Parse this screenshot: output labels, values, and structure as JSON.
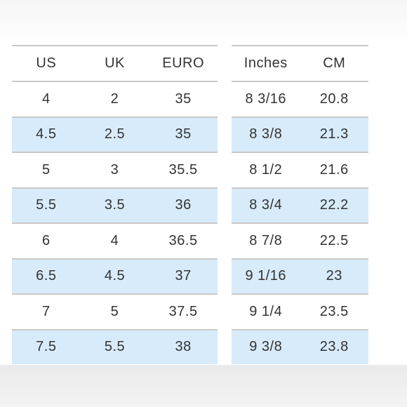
{
  "left_table": {
    "headers": [
      "US",
      "UK",
      "EURO"
    ],
    "rows": [
      [
        "4",
        "2",
        "35"
      ],
      [
        "4.5",
        "2.5",
        "35"
      ],
      [
        "5",
        "3",
        "35.5"
      ],
      [
        "5.5",
        "3.5",
        "36"
      ],
      [
        "6",
        "4",
        "36.5"
      ],
      [
        "6.5",
        "4.5",
        "37"
      ],
      [
        "7",
        "5",
        "37.5"
      ],
      [
        "7.5",
        "5.5",
        "38"
      ]
    ]
  },
  "right_table": {
    "headers": [
      "Inches",
      "CM"
    ],
    "rows": [
      [
        "8 3/16",
        "20.8"
      ],
      [
        "8 3/8",
        "21.3"
      ],
      [
        "8 1/2",
        "21.6"
      ],
      [
        "8 3/4",
        "22.2"
      ],
      [
        "8 7/8",
        "22.5"
      ],
      [
        "9 1/16",
        "23"
      ],
      [
        "9 1/4",
        "23.5"
      ],
      [
        "9 3/8",
        "23.8"
      ]
    ]
  },
  "colors": {
    "shaded_row": "#d8ebfa",
    "rule": "#c9c9c9",
    "text": "#333333"
  }
}
